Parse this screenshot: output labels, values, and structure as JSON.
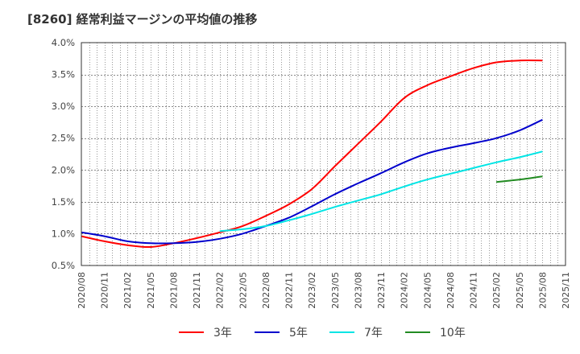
{
  "chart_data": {
    "type": "line",
    "title": "[8260]  経常利益マージンの平均値の推移",
    "xlabel": "",
    "ylabel": "",
    "ylim": [
      0.5,
      4.0
    ],
    "yticks": [
      "0.5%",
      "1.0%",
      "1.5%",
      "2.0%",
      "2.5%",
      "3.0%",
      "3.5%",
      "4.0%"
    ],
    "ytick_values": [
      0.5,
      1.0,
      1.5,
      2.0,
      2.5,
      3.0,
      3.5,
      4.0
    ],
    "categories": [
      "2020/08",
      "2020/11",
      "2021/02",
      "2021/05",
      "2021/08",
      "2021/11",
      "2022/02",
      "2022/05",
      "2022/08",
      "2022/11",
      "2023/02",
      "2023/05",
      "2023/08",
      "2023/11",
      "2024/02",
      "2024/05",
      "2024/08",
      "2024/11",
      "2025/02",
      "2025/05",
      "2025/08",
      "2025/11"
    ],
    "grid": true,
    "legend_position": "bottom",
    "series": [
      {
        "name": "3年",
        "color": "#ff0000",
        "values": [
          0.96,
          0.88,
          0.82,
          0.79,
          0.85,
          0.93,
          1.02,
          1.12,
          1.28,
          1.46,
          1.7,
          2.06,
          2.41,
          2.76,
          3.13,
          3.33,
          3.47,
          3.6,
          3.69,
          3.72,
          3.72,
          null
        ]
      },
      {
        "name": "5年",
        "color": "#0000cc",
        "values": [
          1.02,
          0.96,
          0.88,
          0.85,
          0.85,
          0.87,
          0.92,
          1.0,
          1.12,
          1.25,
          1.43,
          1.62,
          1.79,
          1.95,
          2.12,
          2.26,
          2.35,
          2.42,
          2.5,
          2.62,
          2.79,
          null
        ]
      },
      {
        "name": "7年",
        "color": "#00e5e5",
        "values": [
          null,
          null,
          null,
          null,
          null,
          null,
          1.04,
          1.07,
          1.12,
          1.21,
          1.31,
          1.42,
          1.52,
          1.62,
          1.74,
          1.85,
          1.94,
          2.03,
          2.12,
          2.2,
          2.29,
          null
        ]
      },
      {
        "name": "10年",
        "color": "#228b22",
        "values": [
          null,
          null,
          null,
          null,
          null,
          null,
          null,
          null,
          null,
          null,
          null,
          null,
          null,
          null,
          null,
          null,
          null,
          null,
          1.81,
          1.85,
          1.9,
          null
        ]
      }
    ]
  }
}
